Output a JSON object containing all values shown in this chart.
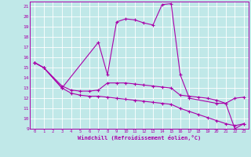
{
  "xlabel": "Windchill (Refroidissement éolien,°C)",
  "background_color": "#c0e8e8",
  "grid_color": "#ffffff",
  "line_color": "#aa00aa",
  "spine_color": "#aa00aa",
  "xlim": [
    -0.5,
    23.5
  ],
  "ylim": [
    9,
    21.5
  ],
  "yticks": [
    9,
    10,
    11,
    12,
    13,
    14,
    15,
    16,
    17,
    18,
    19,
    20,
    21
  ],
  "xticks": [
    0,
    1,
    2,
    3,
    4,
    5,
    6,
    7,
    8,
    9,
    10,
    11,
    12,
    13,
    14,
    15,
    16,
    17,
    18,
    19,
    20,
    21,
    22,
    23
  ],
  "line1_x": [
    0,
    1,
    3,
    7,
    8,
    9,
    10,
    11,
    12,
    13,
    14,
    15,
    16,
    17,
    20,
    21,
    22,
    23
  ],
  "line1_y": [
    15.5,
    15.0,
    13.0,
    17.5,
    14.3,
    19.5,
    19.8,
    19.7,
    19.4,
    19.2,
    21.2,
    21.3,
    14.3,
    12.0,
    11.5,
    11.5,
    9.0,
    9.5
  ],
  "line2_x": [
    0,
    1,
    3,
    4,
    5,
    6,
    7,
    8,
    9,
    10,
    11,
    12,
    13,
    14,
    15,
    16,
    17,
    18,
    19,
    20,
    21,
    22,
    23
  ],
  "line2_y": [
    15.5,
    15.0,
    13.2,
    12.8,
    12.7,
    12.7,
    12.8,
    13.5,
    13.5,
    13.5,
    13.4,
    13.3,
    13.2,
    13.1,
    13.0,
    12.3,
    12.2,
    12.1,
    12.0,
    11.8,
    11.5,
    12.0,
    12.1
  ],
  "line3_x": [
    0,
    1,
    3,
    4,
    5,
    6,
    7,
    8,
    9,
    10,
    11,
    12,
    13,
    14,
    15,
    16,
    17,
    18,
    19,
    20,
    21,
    22,
    23
  ],
  "line3_y": [
    15.5,
    15.0,
    13.0,
    12.5,
    12.3,
    12.2,
    12.2,
    12.1,
    12.0,
    11.9,
    11.8,
    11.7,
    11.6,
    11.5,
    11.4,
    11.0,
    10.7,
    10.4,
    10.1,
    9.8,
    9.5,
    9.3,
    9.5
  ]
}
